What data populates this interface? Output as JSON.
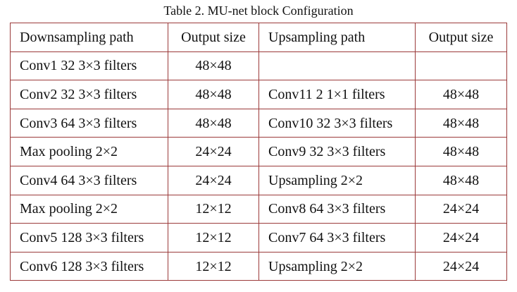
{
  "caption": "Table 2. MU-net block Configuration",
  "table": {
    "headers": [
      "Downsampling path",
      "Output size",
      "Upsampling path",
      "Output size"
    ],
    "rows": [
      [
        "Conv1 32 3×3 filters",
        "48×48",
        "",
        ""
      ],
      [
        "Conv2 32 3×3 filters",
        "48×48",
        "Conv11 2 1×1 filters",
        "48×48"
      ],
      [
        "Conv3 64 3×3 filters",
        "48×48",
        "Conv10 32 3×3 filters",
        "48×48"
      ],
      [
        "Max pooling 2×2",
        "24×24",
        "Conv9 32 3×3 filters",
        "48×48"
      ],
      [
        "Conv4 64 3×3 filters",
        "24×24",
        "Upsampling 2×2",
        "48×48"
      ],
      [
        "Max pooling 2×2",
        "12×12",
        "Conv8 64 3×3 filters",
        "24×24"
      ],
      [
        "Conv5 128 3×3 filters",
        "12×12",
        "Conv7 64 3×3 filters",
        "24×24"
      ],
      [
        "Conv6 128 3×3 filters",
        "12×12",
        "Upsampling 2×2",
        "24×24"
      ]
    ]
  },
  "colors": {
    "table_border": "#9b3a3a",
    "text": "#111111"
  }
}
